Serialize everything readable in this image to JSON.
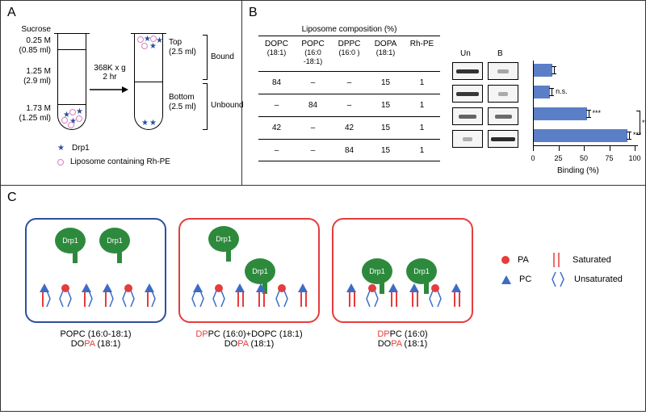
{
  "panels": {
    "A": "A",
    "B": "B",
    "C": "C"
  },
  "A": {
    "sucrose_label": "Sucrose",
    "layers": [
      {
        "conc": "0.25 M",
        "vol": "(0.85 ml)"
      },
      {
        "conc": "1.25 M",
        "vol": "(2.9 ml)"
      },
      {
        "conc": "1.73 M",
        "vol": "(1.25 ml)"
      }
    ],
    "spin": "368K x g",
    "time": "2 hr",
    "italic_g": "g",
    "top": "Top",
    "top_vol": "(2.5 ml)",
    "bottom": "Bottom",
    "bottom_vol": "(2.5 ml)",
    "bound": "Bound",
    "unbound": "Unbound",
    "drp1": "Drp1",
    "lipo": "Liposome containing Rh-PE"
  },
  "B": {
    "header": "Liposome composition (%)",
    "cols": [
      {
        "h": "DOPC",
        "s": "(18:1)"
      },
      {
        "h": "POPC",
        "s": "(16:0\n-18:1)"
      },
      {
        "h": "DPPC",
        "s": "(16:0 )"
      },
      {
        "h": "DOPA",
        "s": "(18:1)"
      },
      {
        "h": "Rh-PE",
        "s": ""
      }
    ],
    "rows": [
      [
        "84",
        "–",
        "–",
        "15",
        "1"
      ],
      [
        "–",
        "84",
        "–",
        "15",
        "1"
      ],
      [
        "42",
        "–",
        "42",
        "15",
        "1"
      ],
      [
        "–",
        "–",
        "84",
        "15",
        "1"
      ]
    ],
    "blot_h": [
      "Un",
      "B"
    ],
    "blot_intensity": [
      [
        0.85,
        0.15
      ],
      [
        0.82,
        0.12
      ],
      [
        0.55,
        0.5
      ],
      [
        0.1,
        0.9
      ]
    ],
    "bars": [
      18,
      16,
      52,
      92
    ],
    "bar_color": "#5b7fc7",
    "sig": [
      "",
      "n.s.",
      "***",
      "***"
    ],
    "bracket_sig": "***",
    "x_ticks": [
      0,
      25,
      50,
      75,
      100
    ],
    "x_label": "Binding (%)"
  },
  "C": {
    "box_colors": [
      "#2c4f9e",
      "#e63c3c",
      "#e63c3c"
    ],
    "labels": [
      {
        "l1p": "PO",
        "l1r": "PC (16:0-18:1)",
        "l2p": "DO",
        "l2pa": "PA",
        "l2r": " (18:1)"
      },
      {
        "l1p": "DP",
        "l1r": "PC (16:0)+DOPC (18:1)",
        "l2p": "DO",
        "l2pa": "PA",
        "l2r": " (18:1)"
      },
      {
        "l1p": "DP",
        "l1r": "PC (16:0)",
        "l2p": "DO",
        "l2pa": "PA",
        "l2r": " (18:1)"
      }
    ],
    "legend": {
      "pa": "PA",
      "pc": "PC",
      "sat": "Saturated",
      "unsat": "Unsaturated"
    },
    "drp_text": "Drp1"
  },
  "colors": {
    "drp": "#2d8a3d",
    "pa": "#e63c3c",
    "pc": "#3d6cc4",
    "star": "#2c4f9e",
    "lipo_ring": "#d97fbf"
  }
}
